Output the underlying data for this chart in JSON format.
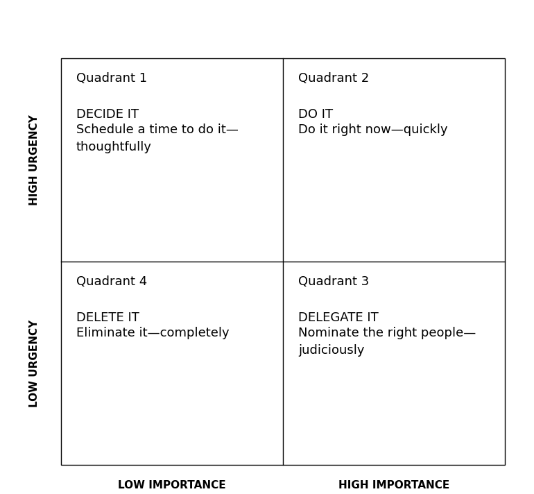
{
  "background_color": "#ffffff",
  "border_color": "#000000",
  "text_color": "#000000",
  "figure_size": [
    7.7,
    7.12
  ],
  "dpi": 100,
  "quadrants": [
    {
      "id": 1,
      "col": 0,
      "row": 1,
      "label": "Quadrant 1",
      "action": "DECIDE IT",
      "description": "Schedule a time to do it—\nthoughtfully"
    },
    {
      "id": 2,
      "col": 1,
      "row": 1,
      "label": "Quadrant 2",
      "action": "DO IT",
      "description": "Do it right now—quickly"
    },
    {
      "id": 4,
      "col": 0,
      "row": 0,
      "label": "Quadrant 4",
      "action": "DELETE IT",
      "description": "Eliminate it—completely"
    },
    {
      "id": 3,
      "col": 1,
      "row": 0,
      "label": "Quadrant 3",
      "action": "DELEGATE IT",
      "description": "Nominate the right people—\njudiciously"
    }
  ],
  "x_labels": [
    "LOW IMPORTANCE",
    "HIGH IMPORTANCE"
  ],
  "y_labels": [
    "LOW URGENCY",
    "HIGH URGENCY"
  ],
  "axis_label_fontsize": 11,
  "quadrant_label_fontsize": 13,
  "action_fontsize": 13,
  "desc_fontsize": 13
}
